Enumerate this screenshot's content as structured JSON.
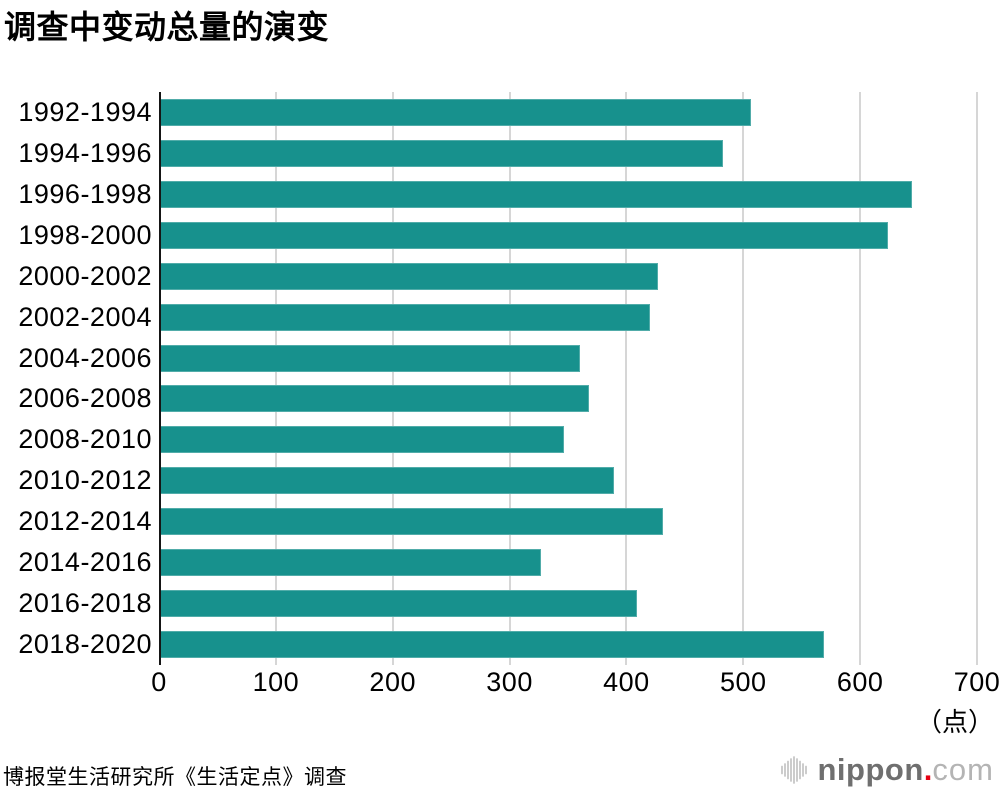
{
  "title": "调查中变动总量的演变",
  "source": "博报堂生活研究所《生活定点》调查",
  "logo": {
    "brand": "nippon",
    "dot": ".",
    "tld": "com"
  },
  "chart_data": {
    "type": "bar",
    "orientation": "horizontal",
    "title": "调查中变动总量的演变",
    "categories": [
      "1992-1994",
      "1994-1996",
      "1996-1998",
      "1998-2000",
      "2000-2002",
      "2002-2004",
      "2004-2006",
      "2006-2008",
      "2008-2010",
      "2010-2012",
      "2012-2014",
      "2014-2016",
      "2016-2018",
      "2018-2020"
    ],
    "values": [
      507,
      483,
      644,
      624,
      427,
      420,
      360,
      368,
      347,
      389,
      431,
      327,
      409,
      569
    ],
    "x_ticks": [
      0,
      100,
      200,
      300,
      400,
      500,
      600,
      700
    ],
    "xlim": [
      0,
      700
    ],
    "unit_label": "（点）",
    "bar_color": "#17918d",
    "grid": true,
    "gridline_color": "#d6d6d6",
    "axis_color": "#151515"
  }
}
